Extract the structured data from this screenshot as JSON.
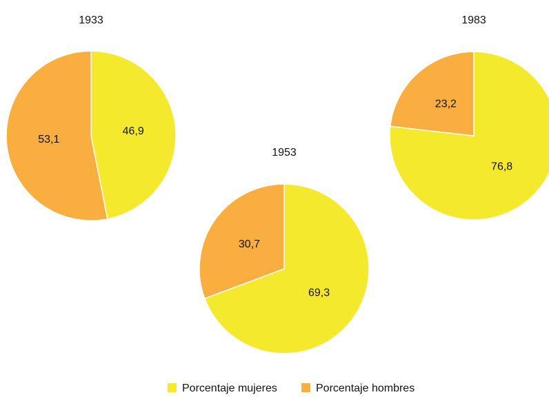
{
  "legend": {
    "labels": [
      "Porcentaje mujeres",
      "Porcentaje hombres"
    ],
    "colors": [
      "#f5e92d",
      "#f9ae3f"
    ]
  },
  "chart_data": [
    {
      "type": "pie",
      "title": "1933",
      "values": [
        46.9,
        53.1
      ],
      "value_labels": [
        "46,9",
        "53,1"
      ]
    },
    {
      "type": "pie",
      "title": "1953",
      "values": [
        69.3,
        30.7
      ],
      "value_labels": [
        "69,3",
        "30,7"
      ]
    },
    {
      "type": "pie",
      "title": "1983",
      "values": [
        76.8,
        23.2
      ],
      "value_labels": [
        "76,8",
        "23,2"
      ]
    }
  ]
}
